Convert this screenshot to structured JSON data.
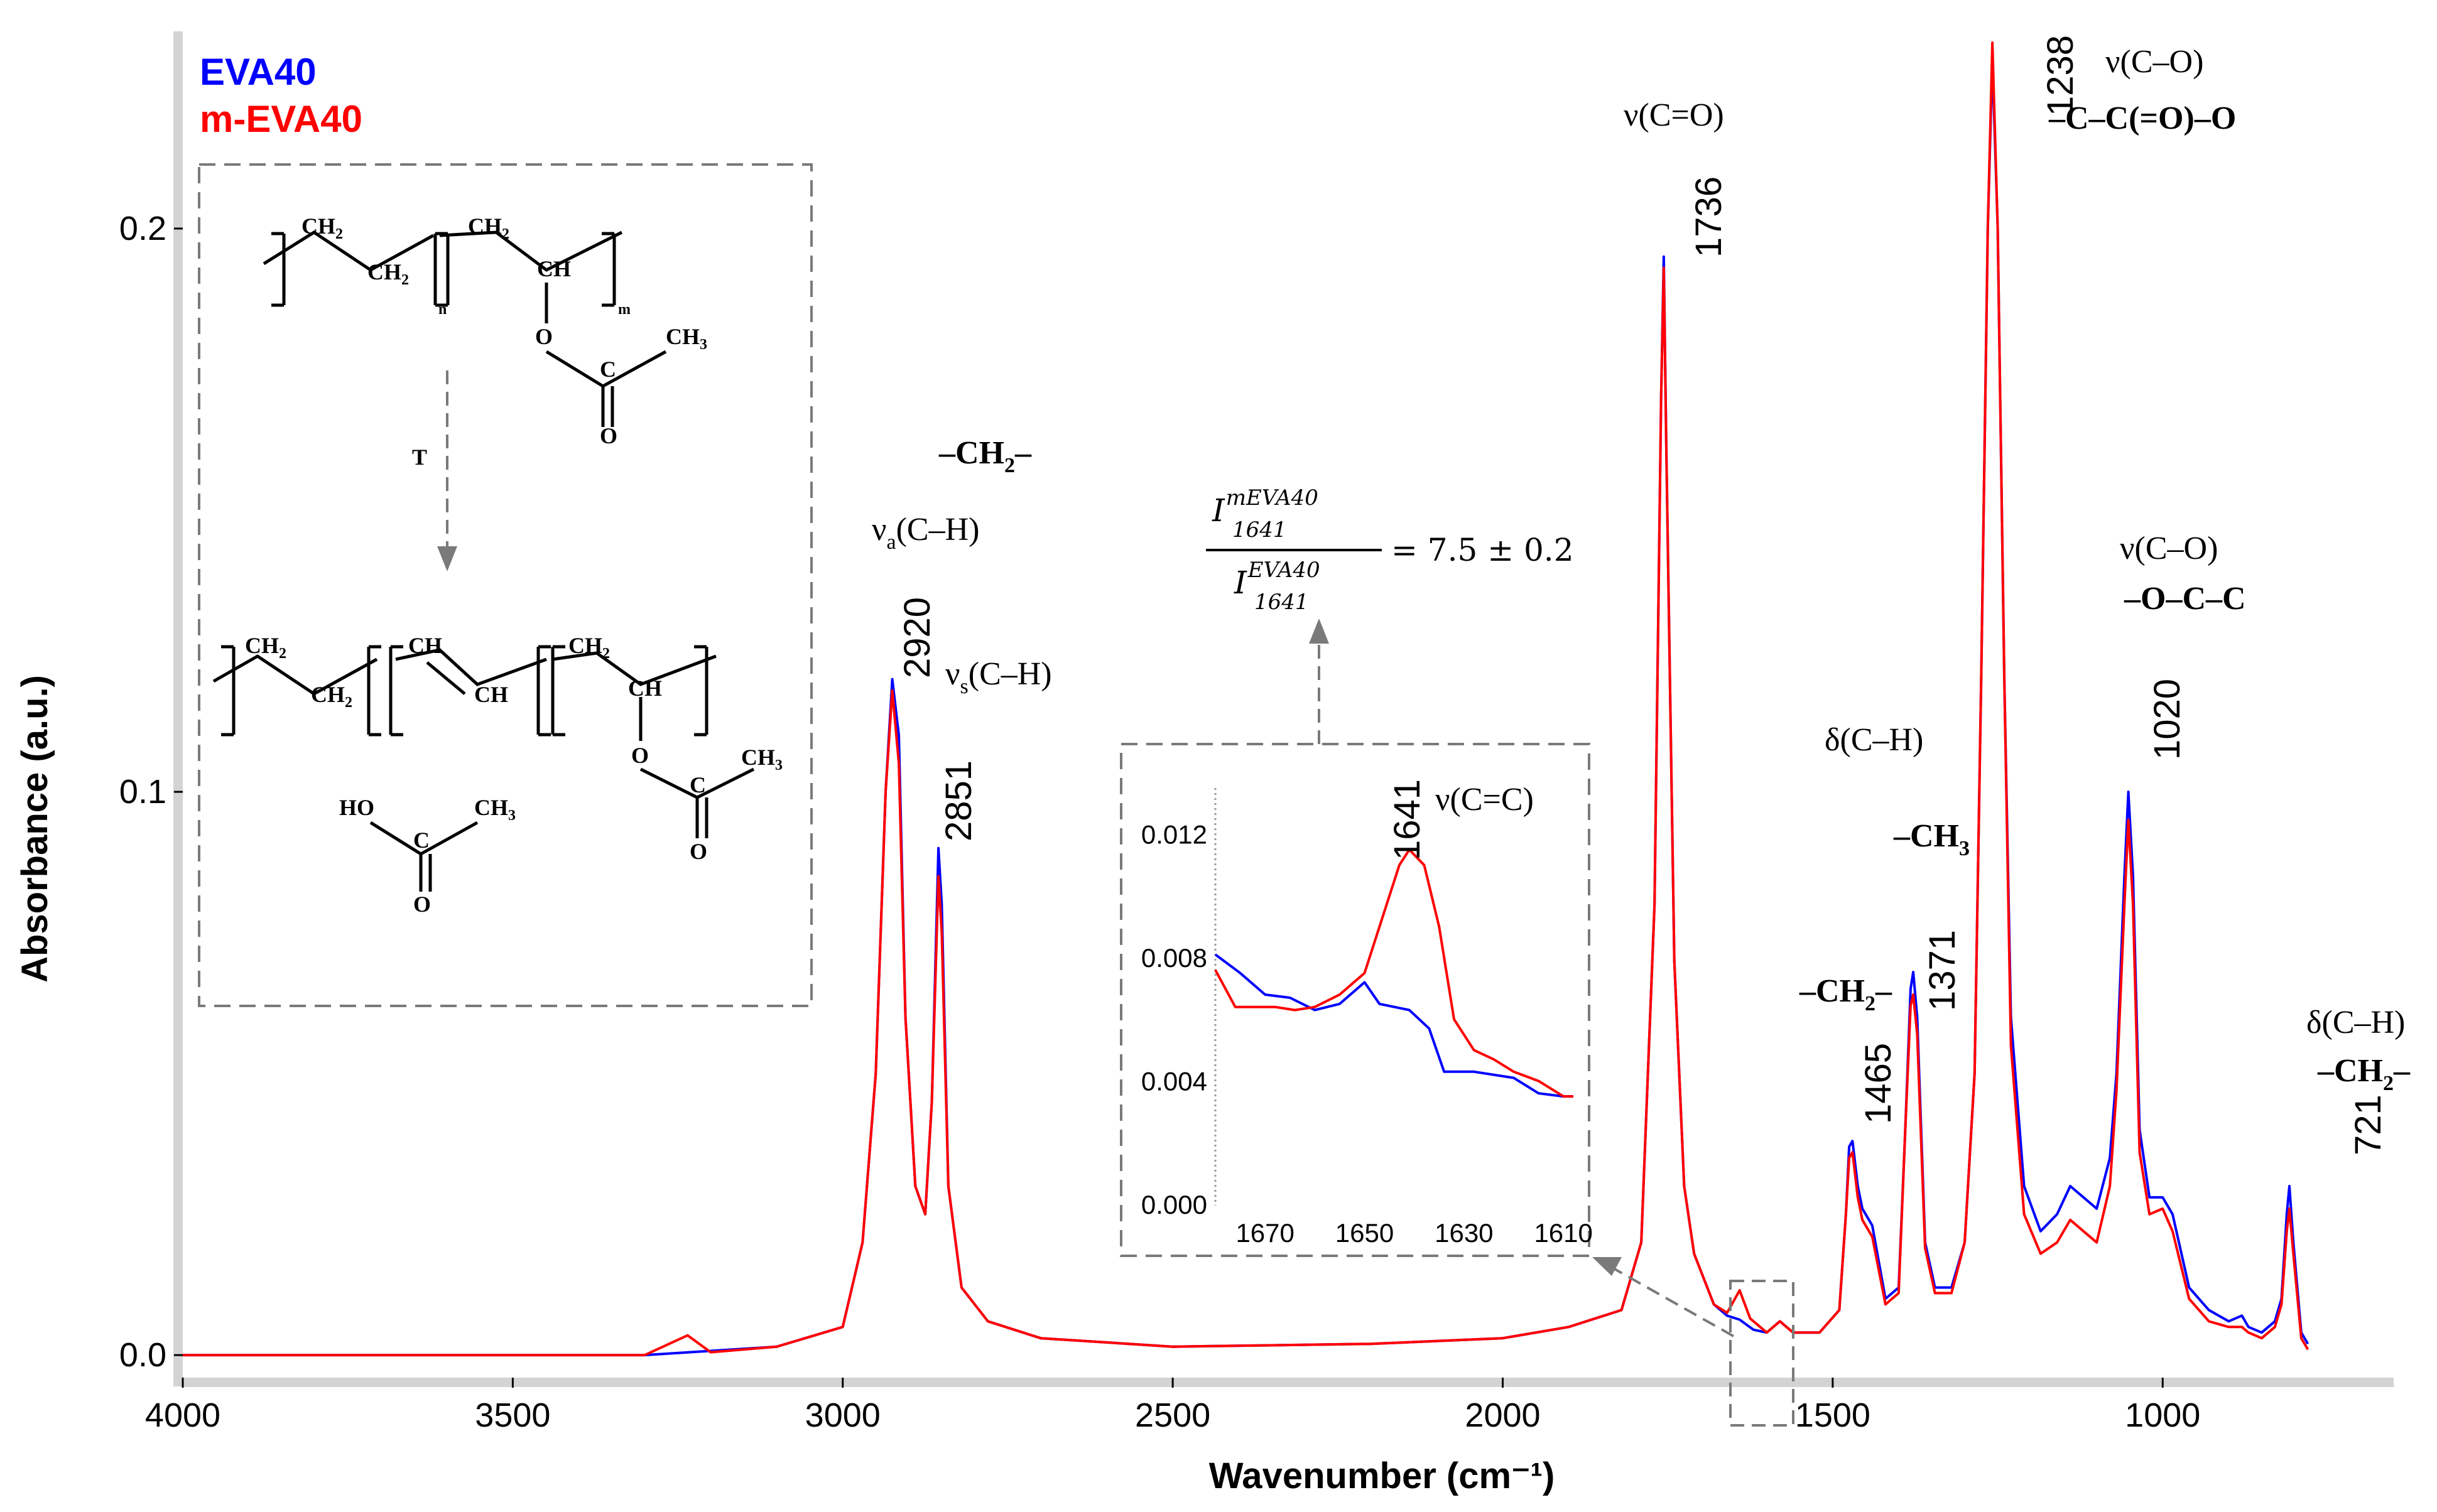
{
  "chart_data": {
    "type": "line",
    "xlabel": "Wavenumber (cm⁻¹)",
    "ylabel": "Absorbance (a.u.)",
    "xlim": [
      4000,
      650
    ],
    "ylim": [
      -0.004,
      0.235
    ],
    "x_ticks": [
      "4000",
      "3500",
      "3000",
      "2500",
      "2000",
      "1500",
      "1000"
    ],
    "y_ticks": [
      "0.0",
      "0.1",
      "0.2"
    ],
    "legend_position": "top-left",
    "series": [
      {
        "name": "EVA40",
        "color": "#0000ff",
        "points": [
          [
            4000,
            0.0
          ],
          [
            3500,
            0.0
          ],
          [
            3300,
            0.0
          ],
          [
            3100,
            0.0015
          ],
          [
            3000,
            0.005
          ],
          [
            2970,
            0.02
          ],
          [
            2950,
            0.05
          ],
          [
            2935,
            0.1
          ],
          [
            2925,
            0.12
          ],
          [
            2915,
            0.11
          ],
          [
            2905,
            0.06
          ],
          [
            2890,
            0.03
          ],
          [
            2875,
            0.025
          ],
          [
            2865,
            0.045
          ],
          [
            2855,
            0.09
          ],
          [
            2850,
            0.08
          ],
          [
            2840,
            0.03
          ],
          [
            2820,
            0.012
          ],
          [
            2780,
            0.006
          ],
          [
            2700,
            0.003
          ],
          [
            2500,
            0.0015
          ],
          [
            2200,
            0.002
          ],
          [
            2000,
            0.003
          ],
          [
            1900,
            0.005
          ],
          [
            1820,
            0.008
          ],
          [
            1790,
            0.02
          ],
          [
            1770,
            0.08
          ],
          [
            1760,
            0.17
          ],
          [
            1756,
            0.195
          ],
          [
            1752,
            0.16
          ],
          [
            1740,
            0.07
          ],
          [
            1725,
            0.03
          ],
          [
            1710,
            0.018
          ],
          [
            1700,
            0.015
          ],
          [
            1680,
            0.009
          ],
          [
            1660,
            0.007
          ],
          [
            1641,
            0.0063
          ],
          [
            1620,
            0.0045
          ],
          [
            1600,
            0.004
          ],
          [
            1580,
            0.006
          ],
          [
            1560,
            0.004
          ],
          [
            1520,
            0.004
          ],
          [
            1490,
            0.008
          ],
          [
            1480,
            0.025
          ],
          [
            1475,
            0.037
          ],
          [
            1470,
            0.038
          ],
          [
            1462,
            0.03
          ],
          [
            1455,
            0.026
          ],
          [
            1440,
            0.023
          ],
          [
            1420,
            0.01
          ],
          [
            1400,
            0.012
          ],
          [
            1390,
            0.04
          ],
          [
            1382,
            0.065
          ],
          [
            1378,
            0.068
          ],
          [
            1372,
            0.06
          ],
          [
            1360,
            0.02
          ],
          [
            1345,
            0.012
          ],
          [
            1320,
            0.012
          ],
          [
            1300,
            0.02
          ],
          [
            1285,
            0.05
          ],
          [
            1275,
            0.12
          ],
          [
            1265,
            0.2
          ],
          [
            1258,
            0.23
          ],
          [
            1250,
            0.2
          ],
          [
            1240,
            0.12
          ],
          [
            1230,
            0.06
          ],
          [
            1210,
            0.03
          ],
          [
            1185,
            0.022
          ],
          [
            1160,
            0.025
          ],
          [
            1140,
            0.03
          ],
          [
            1120,
            0.028
          ],
          [
            1100,
            0.026
          ],
          [
            1080,
            0.035
          ],
          [
            1070,
            0.05
          ],
          [
            1058,
            0.085
          ],
          [
            1052,
            0.1
          ],
          [
            1045,
            0.085
          ],
          [
            1035,
            0.04
          ],
          [
            1020,
            0.028
          ],
          [
            1000,
            0.028
          ],
          [
            985,
            0.025
          ],
          [
            960,
            0.012
          ],
          [
            930,
            0.008
          ],
          [
            900,
            0.006
          ],
          [
            880,
            0.007
          ],
          [
            870,
            0.005
          ],
          [
            850,
            0.004
          ],
          [
            830,
            0.006
          ],
          [
            820,
            0.01
          ],
          [
            812,
            0.025
          ],
          [
            808,
            0.03
          ],
          [
            802,
            0.02
          ],
          [
            790,
            0.004
          ],
          [
            780,
            0.002
          ]
        ]
      },
      {
        "name": "m-EVA40",
        "color": "#ff0000",
        "points": [
          [
            4000,
            0.0
          ],
          [
            3500,
            0.0
          ],
          [
            3300,
            0.0
          ],
          [
            3235,
            0.0035
          ],
          [
            3200,
            0.0005
          ],
          [
            3100,
            0.0015
          ],
          [
            3000,
            0.005
          ],
          [
            2970,
            0.02
          ],
          [
            2950,
            0.05
          ],
          [
            2935,
            0.1
          ],
          [
            2925,
            0.118
          ],
          [
            2915,
            0.105
          ],
          [
            2905,
            0.06
          ],
          [
            2890,
            0.03
          ],
          [
            2875,
            0.025
          ],
          [
            2865,
            0.045
          ],
          [
            2855,
            0.085
          ],
          [
            2850,
            0.075
          ],
          [
            2840,
            0.03
          ],
          [
            2820,
            0.012
          ],
          [
            2780,
            0.006
          ],
          [
            2700,
            0.003
          ],
          [
            2500,
            0.0015
          ],
          [
            2200,
            0.002
          ],
          [
            2000,
            0.003
          ],
          [
            1900,
            0.005
          ],
          [
            1820,
            0.008
          ],
          [
            1790,
            0.02
          ],
          [
            1770,
            0.08
          ],
          [
            1760,
            0.17
          ],
          [
            1756,
            0.193
          ],
          [
            1752,
            0.16
          ],
          [
            1740,
            0.07
          ],
          [
            1725,
            0.03
          ],
          [
            1710,
            0.018
          ],
          [
            1700,
            0.015
          ],
          [
            1680,
            0.009
          ],
          [
            1660,
            0.0075
          ],
          [
            1641,
            0.0115
          ],
          [
            1625,
            0.0065
          ],
          [
            1600,
            0.004
          ],
          [
            1580,
            0.006
          ],
          [
            1560,
            0.004
          ],
          [
            1520,
            0.004
          ],
          [
            1490,
            0.008
          ],
          [
            1480,
            0.025
          ],
          [
            1475,
            0.035
          ],
          [
            1470,
            0.036
          ],
          [
            1462,
            0.028
          ],
          [
            1455,
            0.024
          ],
          [
            1440,
            0.021
          ],
          [
            1420,
            0.009
          ],
          [
            1400,
            0.011
          ],
          [
            1390,
            0.04
          ],
          [
            1382,
            0.062
          ],
          [
            1378,
            0.064
          ],
          [
            1372,
            0.057
          ],
          [
            1360,
            0.019
          ],
          [
            1345,
            0.011
          ],
          [
            1320,
            0.011
          ],
          [
            1300,
            0.02
          ],
          [
            1285,
            0.05
          ],
          [
            1275,
            0.12
          ],
          [
            1265,
            0.2
          ],
          [
            1258,
            0.233
          ],
          [
            1250,
            0.2
          ],
          [
            1240,
            0.12
          ],
          [
            1230,
            0.055
          ],
          [
            1210,
            0.025
          ],
          [
            1185,
            0.018
          ],
          [
            1160,
            0.02
          ],
          [
            1140,
            0.024
          ],
          [
            1120,
            0.022
          ],
          [
            1100,
            0.02
          ],
          [
            1080,
            0.03
          ],
          [
            1070,
            0.047
          ],
          [
            1058,
            0.08
          ],
          [
            1052,
            0.095
          ],
          [
            1045,
            0.08
          ],
          [
            1035,
            0.036
          ],
          [
            1020,
            0.025
          ],
          [
            1000,
            0.026
          ],
          [
            985,
            0.022
          ],
          [
            960,
            0.01
          ],
          [
            930,
            0.006
          ],
          [
            900,
            0.005
          ],
          [
            880,
            0.005
          ],
          [
            870,
            0.004
          ],
          [
            850,
            0.003
          ],
          [
            830,
            0.005
          ],
          [
            820,
            0.009
          ],
          [
            812,
            0.022
          ],
          [
            808,
            0.026
          ],
          [
            802,
            0.018
          ],
          [
            790,
            0.003
          ],
          [
            780,
            0.001
          ]
        ]
      }
    ],
    "peak_labels": [
      "2920",
      "2851",
      "1736",
      "1465",
      "1371",
      "1238",
      "1020",
      "721"
    ],
    "annotations": {
      "ch_a_pre": "ν",
      "ch_a_sub": "a",
      "ch_a_post": "(C–H)",
      "ch_s_pre": "ν",
      "ch_s_sub": "s",
      "ch_s_post": "(C–H)",
      "ch2_group_pre": "–CH",
      "ch2_group_sub": "2",
      "ch2_group_post": "–",
      "co_stretch": "ν(C=O)",
      "co_single_1": "ν(C–O)",
      "ester_group": "–C–C(=O)–O",
      "co_single_2": "ν(C–O)",
      "ester_group_2": "–O–C–C",
      "ch_bend": "δ(C–H)",
      "ch3_group_pre": "–CH",
      "ch3_group_sub": "3",
      "ch2_group_b_pre": "–CH",
      "ch2_group_b_sub": "2",
      "ch2_group_b_post": "–",
      "ch_bend_2": "δ(C–H)",
      "ch2_group_c_pre": "–CH",
      "ch2_group_c_sub": "2",
      "ch2_group_c_post": "–"
    },
    "inset": {
      "xlim": [
        1680,
        1608
      ],
      "ylim": [
        0.0,
        0.0135
      ],
      "x_ticks": [
        "1670",
        "1650",
        "1630",
        "1610"
      ],
      "y_ticks": [
        "0.000",
        "0.004",
        "0.008",
        "0.012"
      ],
      "peak_label": "1641",
      "peak_annotation": "ν(C=C)",
      "series": [
        {
          "name": "EVA40",
          "points": [
            [
              1680,
              0.0081
            ],
            [
              1675,
              0.0075
            ],
            [
              1670,
              0.0068
            ],
            [
              1665,
              0.0067
            ],
            [
              1660,
              0.0063
            ],
            [
              1655,
              0.0065
            ],
            [
              1650,
              0.0072
            ],
            [
              1647,
              0.0065
            ],
            [
              1644,
              0.0064
            ],
            [
              1641,
              0.0063
            ],
            [
              1637,
              0.0057
            ],
            [
              1634,
              0.0043
            ],
            [
              1628,
              0.0043
            ],
            [
              1620,
              0.0041
            ],
            [
              1615,
              0.0036
            ],
            [
              1610,
              0.0035
            ],
            [
              1608,
              0.0035
            ]
          ]
        },
        {
          "name": "m-EVA40",
          "points": [
            [
              1680,
              0.0076
            ],
            [
              1676,
              0.0064
            ],
            [
              1672,
              0.0064
            ],
            [
              1668,
              0.0064
            ],
            [
              1664,
              0.0063
            ],
            [
              1660,
              0.0064
            ],
            [
              1655,
              0.0068
            ],
            [
              1650,
              0.0075
            ],
            [
              1646,
              0.0095
            ],
            [
              1643,
              0.011
            ],
            [
              1641,
              0.0115
            ],
            [
              1638,
              0.011
            ],
            [
              1635,
              0.009
            ],
            [
              1632,
              0.006
            ],
            [
              1628,
              0.005
            ],
            [
              1624,
              0.0047
            ],
            [
              1620,
              0.0043
            ],
            [
              1615,
              0.004
            ],
            [
              1610,
              0.0035
            ],
            [
              1608,
              0.0035
            ]
          ]
        }
      ]
    },
    "ratio_equation": {
      "numerator_base": "I",
      "numerator_sub": "1641",
      "numerator_sup": "mEVA40",
      "denominator_base": "I",
      "denominator_sub": "1641",
      "denominator_sup": "EVA40",
      "result": "= 7.5 ± 0.2"
    },
    "scheme": {
      "ch2": "CH",
      "ch": "CH",
      "sub2": "2",
      "sub_n": "n",
      "sub_m": "m",
      "o": "O",
      "c": "C",
      "ch3": "CH",
      "sub3": "3",
      "ho": "HO",
      "heat": "T"
    }
  }
}
